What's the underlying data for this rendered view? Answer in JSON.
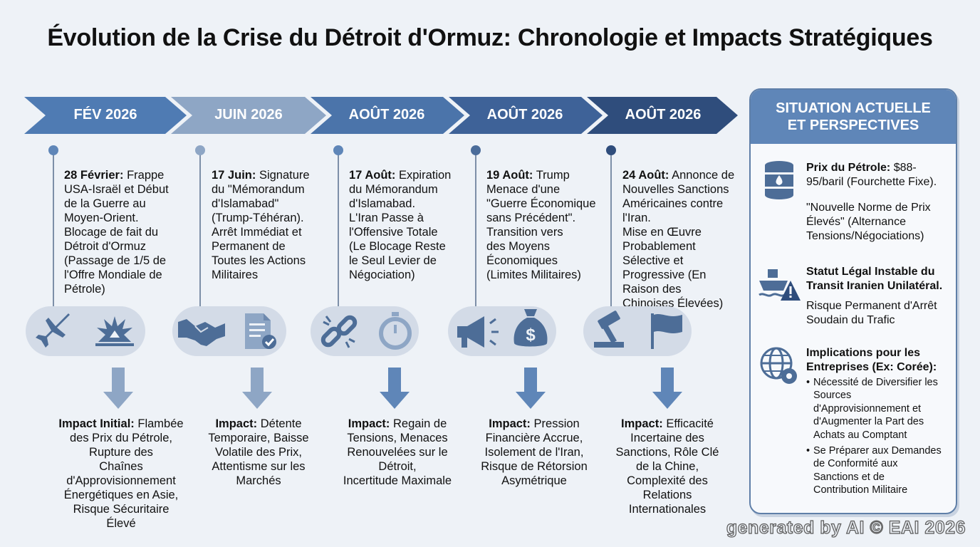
{
  "title": "Évolution de la Crise du Détroit d'Ormuz: Chronologie et Impacts Stratégiques",
  "colors": {
    "chevron_1": "#4f7bb3",
    "chevron_2": "#8ea6c5",
    "chevron_3": "#4b74aa",
    "chevron_4": "#3e6298",
    "chevron_5": "#2f4d7c",
    "icon_blue": "#4d6d97",
    "panel_header": "#5f86b8"
  },
  "timeline": [
    {
      "period": "FÉV 2026",
      "date": "28 Février:",
      "lines": [
        "Frappe",
        "USA-Israël et Début",
        "de la Guerre au",
        "Moyen-Orient.",
        "Blocage de fait du",
        "Détroit d'Ormuz",
        "(Passage de 1/5 de",
        "l'Offre Mondiale de",
        "Pétrole)"
      ],
      "icons": [
        "fighter-jet-icon",
        "explosion-icon"
      ],
      "impact_label": "Impact Initial:",
      "impact_lines": [
        "Flambée",
        "des Prix du Pétrole,",
        "Rupture des",
        "Chaînes",
        "d'Approvisionnement",
        "Énergétiques en Asie,",
        "Risque Sécuritaire",
        "Élevé"
      ]
    },
    {
      "period": "JUIN 2026",
      "date": "17 Juin:",
      "lines": [
        "Signature",
        "du \"Mémorandum",
        "d'Islamabad\"",
        "(Trump-Téhéran).",
        "Arrêt Immédiat et",
        "Permanent de",
        "Toutes les Actions",
        "Militaires"
      ],
      "icons": [
        "handshake-icon",
        "signed-document-icon"
      ],
      "impact_label": "Impact:",
      "impact_lines": [
        "Détente",
        "Temporaire, Baisse",
        "Volatile des Prix,",
        "Attentisme sur les",
        "Marchés"
      ]
    },
    {
      "period": "AOÛT 2026",
      "date": "17 Août:",
      "lines": [
        "Expiration",
        "du Mémorandum",
        "d'Islamabad.",
        "L'Iran Passe à",
        "l'Offensive Totale",
        "(Le Blocage Reste",
        "le Seul Levier de",
        "Négociation)"
      ],
      "icons": [
        "broken-link-icon",
        "stopwatch-icon"
      ],
      "impact_label": "Impact:",
      "impact_lines": [
        "Regain de",
        "Tensions, Menaces",
        "Renouvelées sur le",
        "Détroit,",
        "Incertitude Maximale"
      ]
    },
    {
      "period": "AOÛT 2026",
      "date": "19 Août:",
      "lines": [
        "Trump",
        "Menace d'une",
        "\"Guerre Économique",
        "sans Précédent\".",
        "Transition vers",
        "des Moyens",
        "Économiques",
        "(Limites Militaires)"
      ],
      "icons": [
        "megaphone-icon",
        "money-bag-icon"
      ],
      "impact_label": "Impact:",
      "impact_lines": [
        "Pression",
        "Financière Accrue,",
        "Isolement de l'Iran,",
        "Risque de Rétorsion",
        "Asymétrique"
      ]
    },
    {
      "period": "AOÛT 2026",
      "date": "24 Août:",
      "lines": [
        "Annonce de",
        "Nouvelles Sanctions",
        "Américaines contre",
        "l'Iran.",
        "Mise en Œuvre",
        "Probablement",
        "Sélective et",
        "Progressive (En",
        "Raison des",
        "Chinoises Élevées)"
      ],
      "icons": [
        "gavel-icon",
        "flag-icon"
      ],
      "impact_label": "Impact:",
      "impact_lines": [
        "Efficacité",
        "Incertaine des",
        "Sanctions, Rôle Clé",
        "de la Chine,",
        "Complexité des",
        "Relations",
        "Internationales"
      ]
    }
  ],
  "panel": {
    "title_line1": "SITUATION ACTUELLE",
    "title_line2": "ET PERSPECTIVES",
    "oil": {
      "label": "Prix du Pétrole:",
      "lines": [
        "$88-",
        "95/baril (Fourchette Fixe)."
      ],
      "quote_lines": [
        "\"Nouvelle Norme de Prix",
        "Élevés\" (Alternance",
        "Tensions/Négociations)"
      ]
    },
    "legal": {
      "heading_lines": [
        "Statut Légal Instable du",
        "Transit Iranien Unilatéral."
      ],
      "risk_lines": [
        "Risque Permanent d'Arrêt",
        "Soudain du Trafic"
      ]
    },
    "business": {
      "heading_lines": [
        "Implications pour les",
        "Entreprises (Ex: Corée):"
      ],
      "bullets": [
        [
          "Nécessité de Diversifier les",
          "Sources",
          "d'Approvisionnement et",
          "d'Augmenter la Part des",
          "Achats au Comptant"
        ],
        [
          "Se Préparer aux Demandes",
          "de Conformité aux",
          "Sanctions et de",
          "Contribution Militaire"
        ]
      ]
    }
  },
  "watermark": "generated by AI © EAI 2026"
}
